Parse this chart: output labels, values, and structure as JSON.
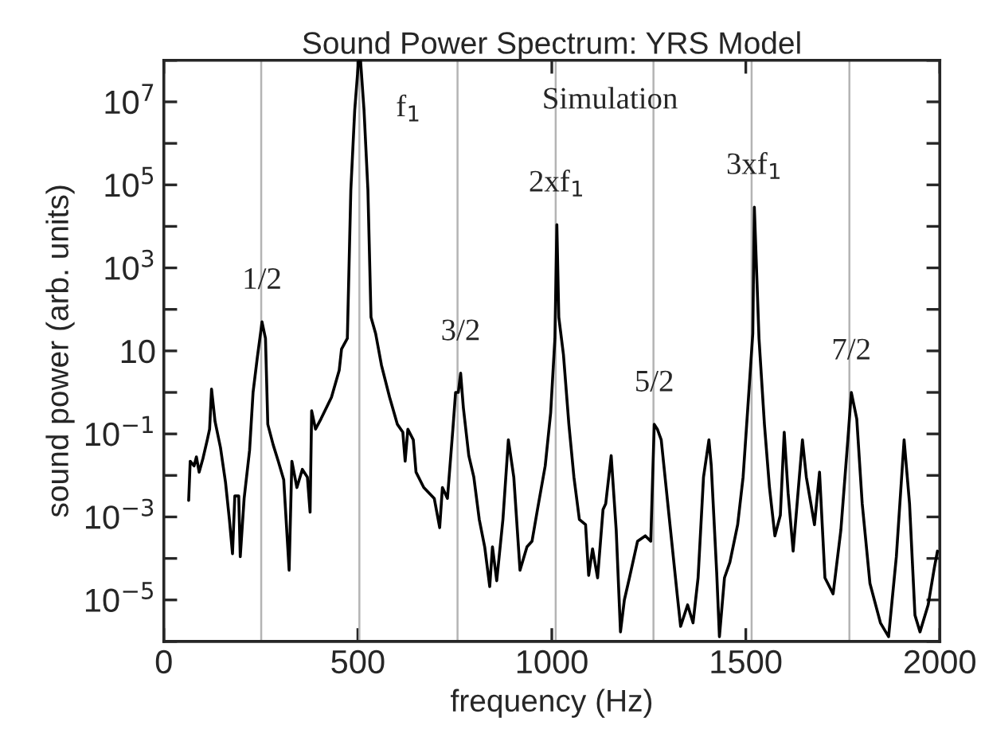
{
  "chart_data": {
    "type": "line",
    "title": "Sound Power Spectrum: YRS Model",
    "xlabel": "frequency (Hz)",
    "ylabel": "sound power (arb. units)",
    "log": "y",
    "xlim": [
      0,
      2000
    ],
    "xticks": [
      0,
      500,
      1000,
      1500,
      2000
    ],
    "ylim": [
      1e-06,
      100000000.0
    ],
    "yticks": [
      {
        "value": 1e-06,
        "label": null
      },
      {
        "value": 1e-05,
        "label": "10$^{−5}$"
      },
      {
        "value": 0.0001,
        "label": null
      },
      {
        "value": 0.001,
        "label": "10$^{−3}$"
      },
      {
        "value": 0.01,
        "label": null
      },
      {
        "value": 0.1,
        "label": "10$^{−1}$"
      },
      {
        "value": 1,
        "label": null
      },
      {
        "value": 10,
        "label": "10"
      },
      {
        "value": 100,
        "label": null
      },
      {
        "value": 1000.0,
        "label": "10$^{3}$"
      },
      {
        "value": 10000.0,
        "label": null
      },
      {
        "value": 100000.0,
        "label": "10$^{5}$"
      },
      {
        "value": 1000000.0,
        "label": null
      },
      {
        "value": 10000000.0,
        "label": "10$^{7}$"
      },
      {
        "value": 100000000.0,
        "label": null
      }
    ],
    "grid": false,
    "legend": false,
    "marker": "none",
    "line_style": "solid",
    "series": [
      {
        "color": "#000000",
        "x": [
          64,
          68,
          78,
          84,
          91,
          101,
          112,
          118,
          123,
          132,
          146,
          159,
          169,
          177,
          183,
          193,
          197,
          207,
          221,
          230,
          241,
          251,
          253,
          262,
          268,
          282,
          295,
          309,
          323,
          330,
          343,
          357,
          370,
          377,
          381,
          391,
          405,
          432,
          452,
          458,
          473,
          482,
          492,
          502,
          507,
          516,
          526,
          534,
          546,
          561,
          582,
          602,
          616,
          622,
          629,
          643,
          650,
          670,
          697,
          711,
          718,
          731,
          745,
          752,
          759,
          765,
          772,
          786,
          799,
          813,
          827,
          840,
          847,
          858,
          874,
          888,
          902,
          918,
          936,
          949,
          963,
          983,
          997,
          1008,
          1013,
          1018,
          1030,
          1044,
          1057,
          1071,
          1087,
          1095,
          1105,
          1118,
          1132,
          1139,
          1153,
          1166,
          1177,
          1187,
          1200,
          1221,
          1241,
          1255,
          1264,
          1272,
          1282,
          1302,
          1323,
          1332,
          1350,
          1364,
          1377,
          1391,
          1405,
          1411,
          1425,
          1432,
          1445,
          1459,
          1479,
          1493,
          1507,
          1518,
          1522,
          1534,
          1548,
          1561,
          1575,
          1589,
          1599,
          1609,
          1622,
          1646,
          1656,
          1677,
          1690,
          1704,
          1725,
          1745,
          1763,
          1772,
          1786,
          1800,
          1820,
          1847,
          1868,
          1888,
          1908,
          1922,
          1936,
          1949,
          1970,
          1986,
          1994
        ],
        "values": [
          0.0025,
          0.022,
          0.017,
          0.028,
          0.012,
          0.026,
          0.072,
          0.13,
          1.2,
          0.2,
          0.047,
          0.0068,
          0.00087,
          0.00013,
          0.0032,
          0.0032,
          0.00011,
          0.0028,
          0.04,
          1.0,
          7,
          35,
          50,
          20,
          0.17,
          0.054,
          0.022,
          0.0079,
          5.2e-05,
          0.022,
          0.0051,
          0.014,
          0.0091,
          0.0013,
          0.36,
          0.13,
          0.23,
          0.76,
          3.4,
          11,
          20,
          76000,
          6300000,
          100000000,
          100000000,
          6300000,
          76000,
          65,
          26,
          4.5,
          0.76,
          0.17,
          0.11,
          0.022,
          0.13,
          0.072,
          0.012,
          0.0051,
          0.0028,
          0.00055,
          0.0051,
          0.0028,
          0.13,
          1.0,
          1.0,
          2.9,
          0.43,
          0.03,
          0.0091,
          0.00087,
          0.00019,
          2.1e-05,
          0.00019,
          2.9e-05,
          0.00087,
          0.072,
          0.0091,
          5.2e-05,
          0.00019,
          0.00026,
          0.0015,
          0.017,
          0.32,
          20,
          11000,
          65,
          8.1,
          0.17,
          0.0091,
          0.00087,
          0.00065,
          3.9e-05,
          0.00017,
          3.4e-05,
          0.0015,
          0.0021,
          0.03,
          0.00048,
          1.7e-06,
          1e-05,
          3.4e-05,
          0.00026,
          0.00035,
          0.00026,
          0.17,
          0.13,
          0.072,
          0.0011,
          1.4e-05,
          2.3e-06,
          7.6e-06,
          2.8e-06,
          3.4e-05,
          0.0091,
          0.072,
          0.017,
          4.5e-05,
          1.3e-06,
          3.4e-05,
          8.1e-05,
          0.00065,
          0.0091,
          0.76,
          26,
          29000,
          20,
          0.17,
          0.0051,
          0.00035,
          0.0011,
          0.11,
          0.0038,
          0.00015,
          0.072,
          0.0091,
          0.00065,
          0.012,
          3.4e-05,
          1.4e-05,
          0.00048,
          0.072,
          1.0,
          0.23,
          0.0021,
          2.5e-05,
          2.8e-06,
          1.3e-06,
          0.00011,
          0.072,
          0.0021,
          4.3e-06,
          1.7e-06,
          7.6e-06,
          6e-05,
          0.00015
        ]
      }
    ],
    "ref_lines": [
      {
        "axis": "x",
        "value": 251,
        "color": "#b4b4b4"
      },
      {
        "axis": "x",
        "value": 504,
        "color": "#b4b4b4"
      },
      {
        "axis": "x",
        "value": 757,
        "color": "#b4b4b4"
      },
      {
        "axis": "x",
        "value": 1010,
        "color": "#b4b4b4"
      },
      {
        "axis": "x",
        "value": 1262,
        "color": "#b4b4b4"
      },
      {
        "axis": "x",
        "value": 1515,
        "color": "#b4b4b4"
      },
      {
        "axis": "x",
        "value": 1767,
        "color": "#b4b4b4"
      }
    ],
    "annotations": [
      {
        "text": "1/2",
        "x": 253,
        "y": 50
      },
      {
        "text": "f$_{1}$",
        "x": 507,
        "y": 100000000
      },
      {
        "text": "3/2",
        "x": 765,
        "y": 2.9
      },
      {
        "text": "2xf$_{1}$",
        "x": 1013,
        "y": 11000
      },
      {
        "text": "5/2",
        "x": 1264,
        "y": 0.17
      },
      {
        "text": "3xf$_{1}$",
        "x": 1522,
        "y": 29000
      },
      {
        "text": "7/2",
        "x": 1772,
        "y": 1.0
      },
      "Simulation"
    ]
  }
}
